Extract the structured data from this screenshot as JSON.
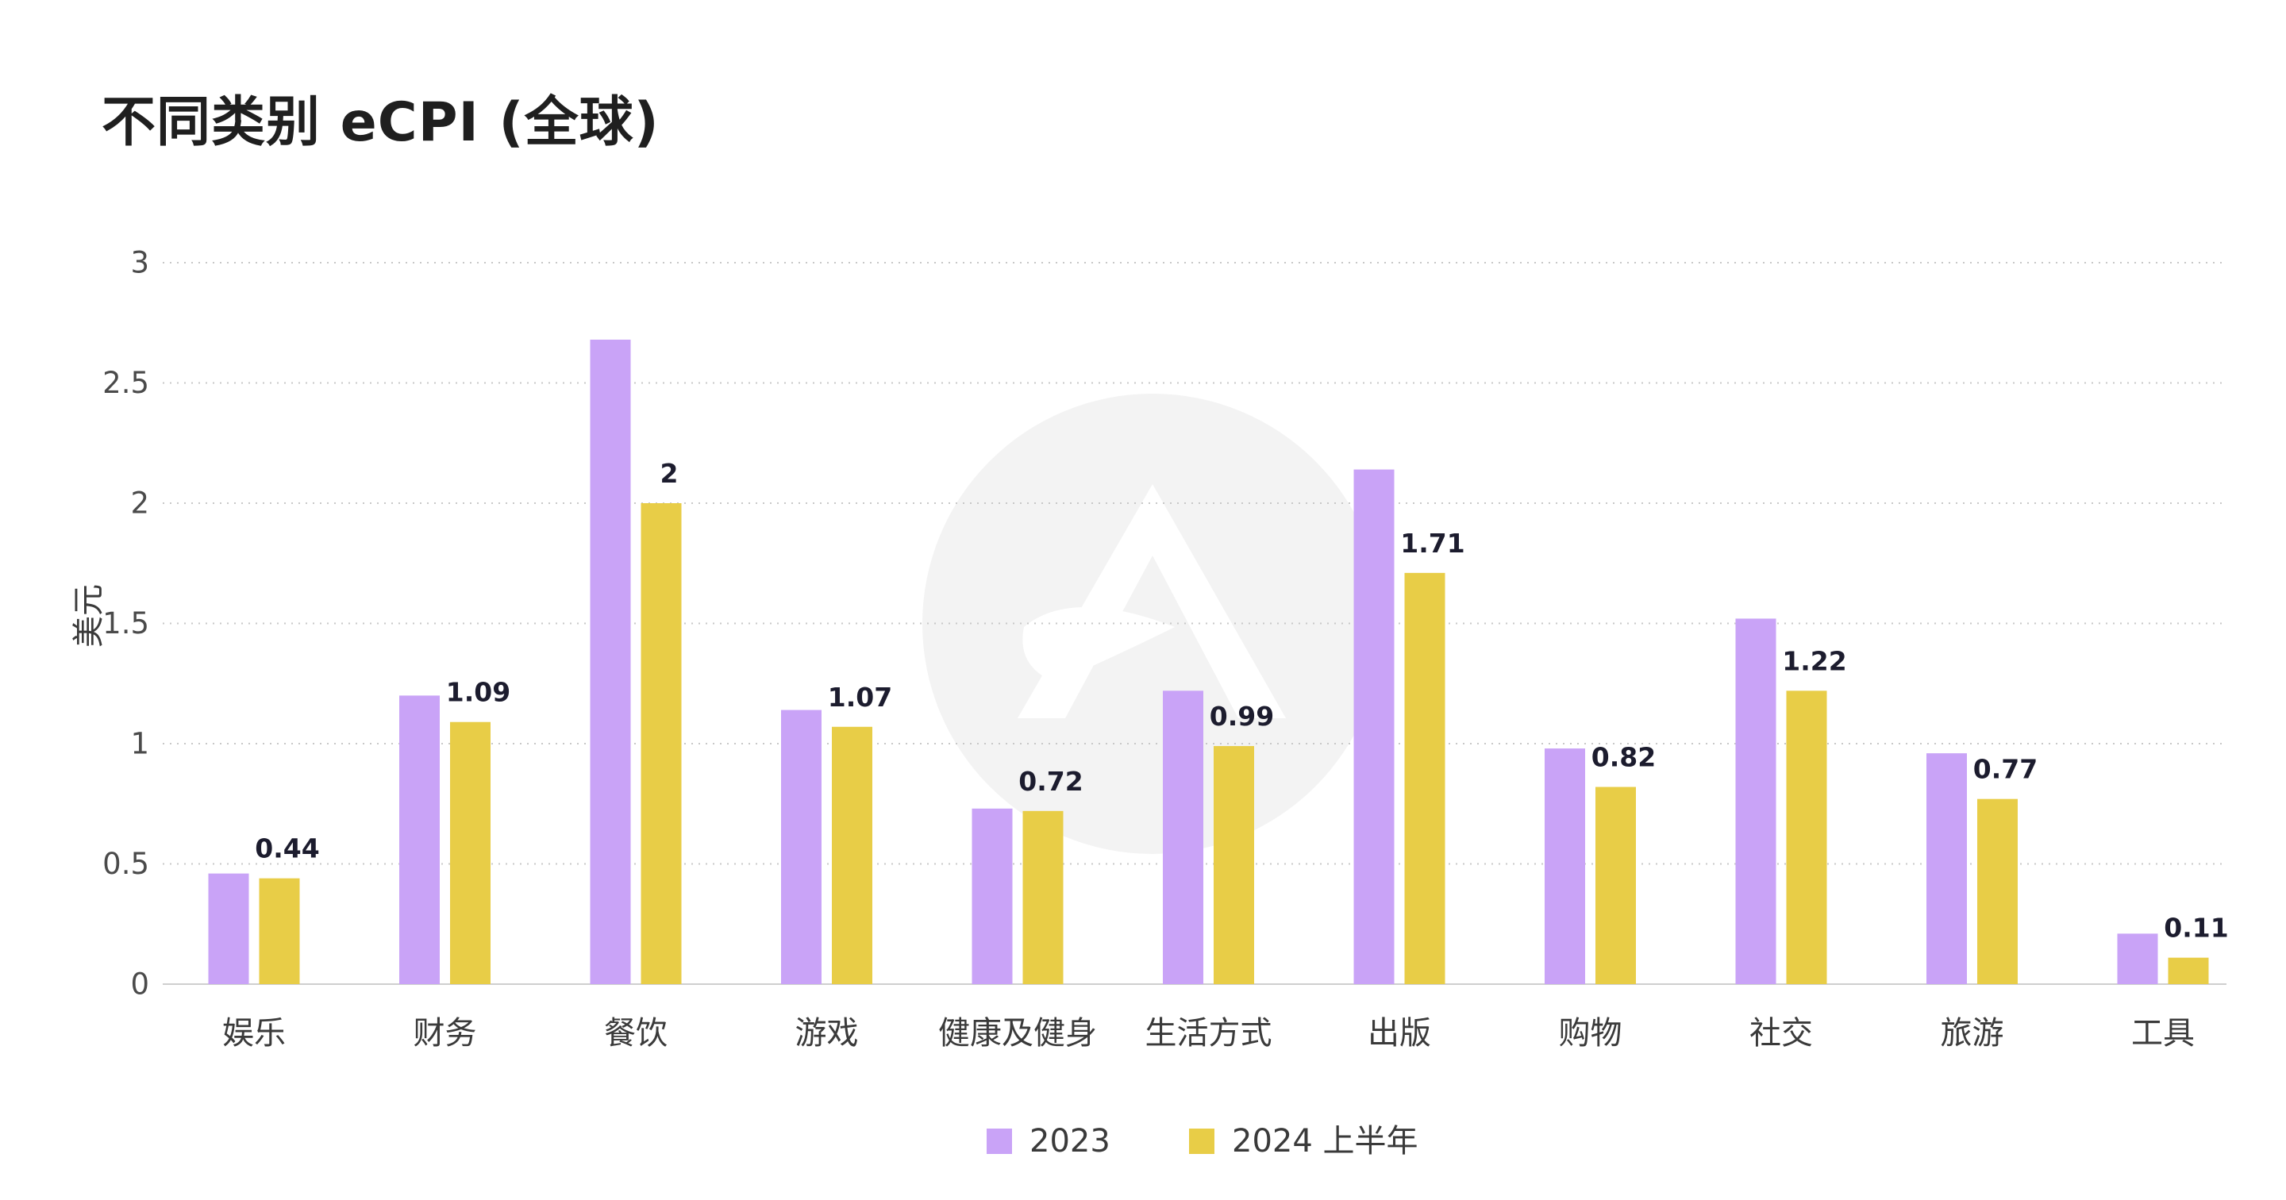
{
  "chart_data": {
    "type": "bar",
    "title": "不同类别 eCPI (全球)",
    "ylabel": "美元",
    "xlabel": "",
    "ylim": [
      0,
      3
    ],
    "yticks": [
      0,
      0.5,
      1,
      1.5,
      2,
      2.5,
      3
    ],
    "ytick_labels": [
      "0",
      "0.5",
      "1",
      "1.5",
      "2",
      "2.5",
      "3"
    ],
    "grid": true,
    "legend_position": "bottom-center",
    "categories": [
      "娱乐",
      "财务",
      "餐饮",
      "游戏",
      "健康及健身",
      "生活方式",
      "出版",
      "购物",
      "社交",
      "旅游",
      "工具"
    ],
    "series": [
      {
        "name": "2023",
        "color": "#c9a3f7",
        "values": [
          0.46,
          1.2,
          2.68,
          1.14,
          0.73,
          1.22,
          2.14,
          0.98,
          1.52,
          0.96,
          0.21
        ],
        "data_labels": false
      },
      {
        "name": "2024 上半年",
        "color": "#e8cd47",
        "values": [
          0.44,
          1.09,
          2,
          1.07,
          0.72,
          0.99,
          1.71,
          0.82,
          1.22,
          0.77,
          0.11
        ],
        "data_labels": true
      }
    ]
  }
}
